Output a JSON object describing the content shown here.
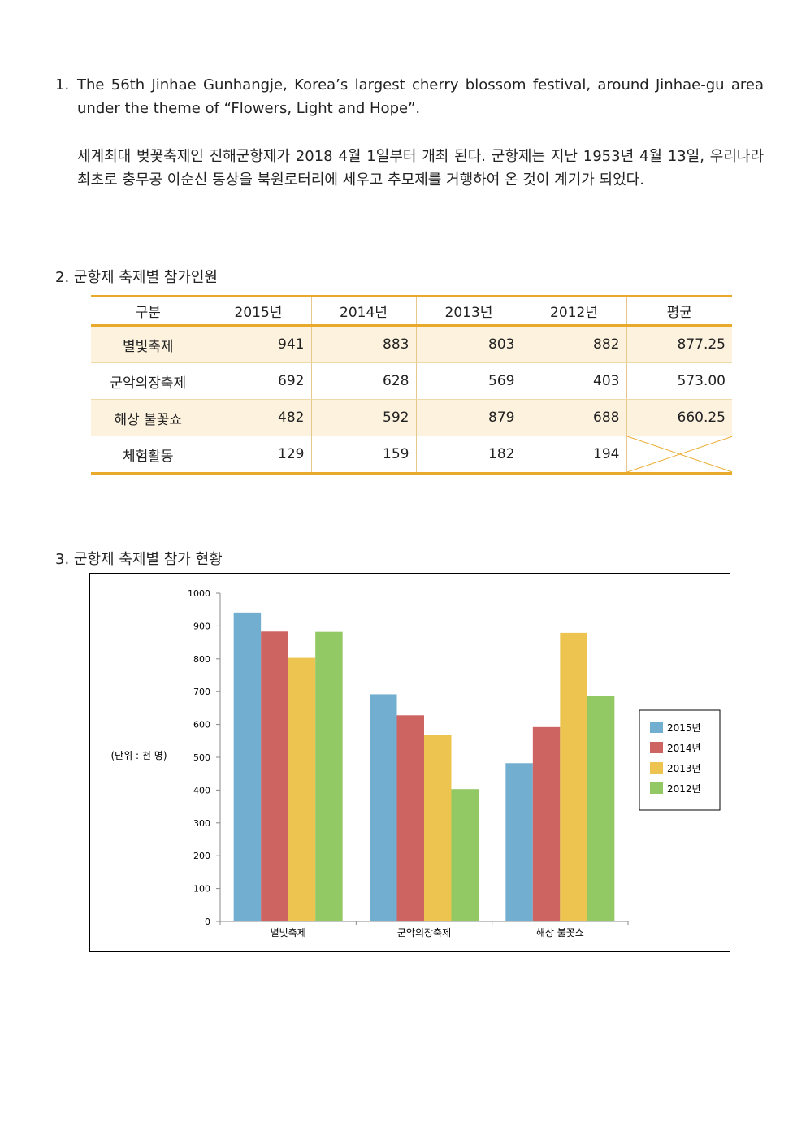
{
  "section1": {
    "number": "1.",
    "english": "The 56th Jinhae Gunhangje, Korea’s largest cherry blossom festival, around Jinhae-gu area under the theme of “Flowers, Light and Hope”.",
    "korean": "세계최대 벚꽃축제인 진해군항제가 2018 4월 1일부터 개최 된다. 군항제는 지난 1953년 4월 13일, 우리나라 최초로 충무공 이순신 동상을 북원로터리에 세우고 추모제를 거행하여 온 것이 계기가 되었다."
  },
  "section2": {
    "number": "2.",
    "title": "군항제 축제별 참가인원",
    "headers": [
      "구분",
      "2015년",
      "2014년",
      "2013년",
      "2012년",
      "평균"
    ],
    "rows": [
      {
        "label": "별빛축제",
        "values": [
          "941",
          "883",
          "803",
          "882"
        ],
        "avg": "877.25"
      },
      {
        "label": "군악의장축제",
        "values": [
          "692",
          "628",
          "569",
          "403"
        ],
        "avg": "573.00"
      },
      {
        "label": "해상 불꽃쇼",
        "values": [
          "482",
          "592",
          "879",
          "688"
        ],
        "avg": "660.25"
      },
      {
        "label": "체험활동",
        "values": [
          "129",
          "159",
          "182",
          "194"
        ],
        "avg": null
      }
    ]
  },
  "section3": {
    "number": "3.",
    "title": "군항제 축제별 참가 현황"
  },
  "chart_data": {
    "type": "bar",
    "title": "",
    "unit_label": "(단위 : 천 명)",
    "categories": [
      "별빛축제",
      "군악의장축제",
      "해상 불꽃쇼"
    ],
    "series": [
      {
        "name": "2015년",
        "values": [
          941,
          692,
          482
        ],
        "color": "#72aecf"
      },
      {
        "name": "2014년",
        "values": [
          883,
          628,
          592
        ],
        "color": "#cd6462"
      },
      {
        "name": "2013년",
        "values": [
          803,
          569,
          879
        ],
        "color": "#ecc44f"
      },
      {
        "name": "2012년",
        "values": [
          882,
          403,
          688
        ],
        "color": "#92c965"
      }
    ],
    "ylim": [
      0,
      1000
    ],
    "yticks": [
      "0",
      "100",
      "200",
      "300",
      "400",
      "500",
      "600",
      "700",
      "800",
      "900",
      "1000"
    ],
    "legend_position": "right",
    "grid": false
  }
}
